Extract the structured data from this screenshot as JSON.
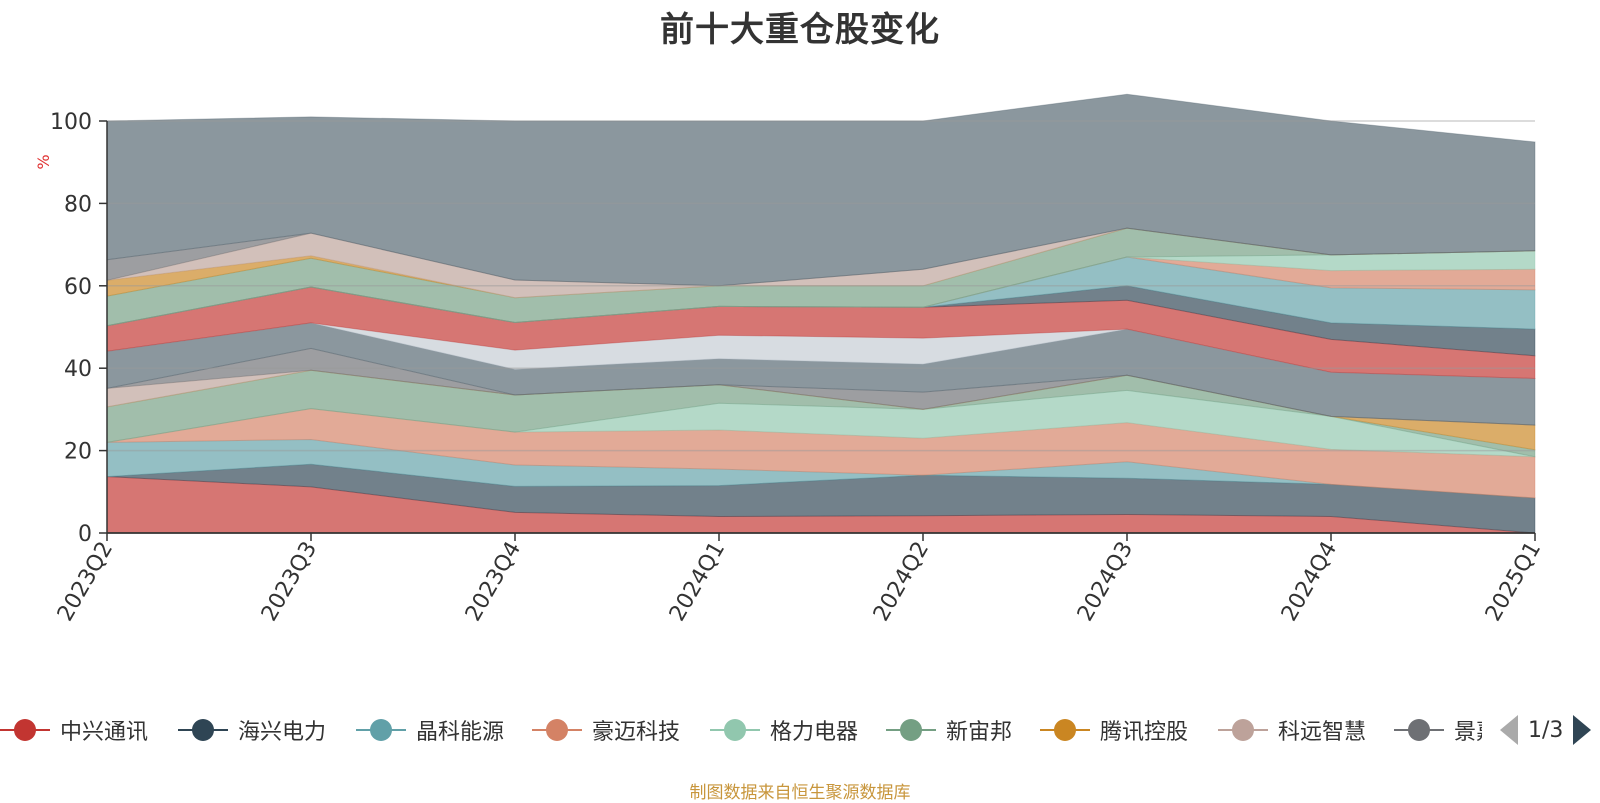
{
  "title": "前十大重仓股变化",
  "source": "制图数据来自恒生聚源数据库",
  "pager": {
    "label": "1/3"
  },
  "chart_data": {
    "type": "area",
    "stacked": true,
    "title": "前十大重仓股变化",
    "ylabel": "%",
    "ylim": [
      0,
      100
    ],
    "yticks": [
      0,
      20,
      40,
      60,
      80,
      100
    ],
    "categories": [
      "2023Q2",
      "2023Q3",
      "2023Q4",
      "2024Q1",
      "2024Q2",
      "2024Q3",
      "2024Q4",
      "2025Q1"
    ],
    "legend_position": "bottom",
    "grid": true,
    "series": [
      {
        "name": "中兴通讯",
        "color": "#c23531",
        "values": [
          13.7,
          11.2,
          5.0,
          4.0,
          4.2,
          4.5,
          4.0,
          0
        ]
      },
      {
        "name": "海兴电力",
        "color": "#2f4554",
        "values": [
          0,
          5.5,
          6.3,
          7.5,
          9.8,
          8.8,
          7.8,
          8.5
        ]
      },
      {
        "name": "晶科能源",
        "color": "#61a0a8",
        "values": [
          8.3,
          6.0,
          5.2,
          4.0,
          0,
          4.0,
          0,
          0
        ]
      },
      {
        "name": "豪迈科技",
        "color": "#d48265",
        "values": [
          0,
          7.5,
          8.0,
          9.5,
          9.0,
          9.5,
          8.5,
          10.0
        ]
      },
      {
        "name": "格力电器",
        "color": "#91c7ae",
        "values": [
          0,
          0,
          0,
          6.5,
          7.0,
          7.8,
          8.0,
          0
        ]
      },
      {
        "name": "新宙邦",
        "color": "#749f83",
        "values": [
          8.6,
          9.3,
          9.0,
          4.5,
          0,
          3.7,
          0,
          1.7
        ]
      },
      {
        "name": "腾讯控股",
        "color": "#ca8622",
        "values": [
          0,
          0,
          0,
          0,
          0,
          0,
          0,
          6.0
        ]
      },
      {
        "name": "科远智慧",
        "color": "#bda29a",
        "values": [
          4.5,
          0,
          0,
          0,
          0,
          0,
          0,
          0
        ]
      },
      {
        "name": "景嘉微",
        "color": "#6e7074",
        "values": [
          0,
          5.3,
          0,
          0,
          4.2,
          0,
          0,
          0
        ]
      },
      {
        "name": "",
        "color": "#546570",
        "values": [
          9.0,
          6.2,
          6.2,
          6.3,
          6.8,
          11.2,
          10.7,
          11.3
        ]
      },
      {
        "name": "",
        "color": "#c4ccd3",
        "values": [
          0,
          0,
          4.7,
          5.7,
          6.3,
          0,
          0,
          0
        ]
      },
      {
        "name": "",
        "color": "#c23531",
        "values": [
          6.2,
          8.7,
          6.7,
          7.0,
          7.5,
          7.0,
          8.0,
          5.5
        ]
      },
      {
        "name": "",
        "color": "#2f4554",
        "values": [
          0,
          0,
          0,
          0,
          0,
          3.5,
          4.0,
          6.5
        ]
      },
      {
        "name": "",
        "color": "#61a0a8",
        "values": [
          0,
          0,
          0,
          0,
          0,
          7.0,
          8.5,
          9.5
        ]
      },
      {
        "name": "",
        "color": "#d48265",
        "values": [
          0,
          0,
          0,
          0,
          0,
          0,
          4.2,
          5.0
        ]
      },
      {
        "name": "",
        "color": "#91c7ae",
        "values": [
          0,
          0,
          0,
          0,
          0,
          0,
          3.8,
          4.5
        ]
      },
      {
        "name": "",
        "color": "#749f83",
        "values": [
          7.2,
          7.0,
          6.0,
          5.0,
          5.2,
          7.0,
          0,
          0
        ]
      },
      {
        "name": "",
        "color": "#ca8622",
        "values": [
          3.8,
          0.6,
          0,
          0,
          0,
          0,
          0,
          0
        ]
      },
      {
        "name": "",
        "color": "#bda29a",
        "values": [
          0,
          5.5,
          4.3,
          0,
          4.0,
          0,
          0,
          0
        ]
      },
      {
        "name": "",
        "color": "#6e7074",
        "values": [
          5.0,
          0,
          0,
          0,
          0,
          0,
          0,
          0
        ]
      },
      {
        "name": "",
        "color": "#546570",
        "values": [
          33.7,
          28.2,
          38.6,
          40.0,
          36.0,
          32.5,
          32.5,
          26.4
        ]
      }
    ]
  },
  "legend": [
    {
      "name": "中兴通讯",
      "color": "#c23531"
    },
    {
      "name": "海兴电力",
      "color": "#2f4554"
    },
    {
      "name": "晶科能源",
      "color": "#61a0a8"
    },
    {
      "name": "豪迈科技",
      "color": "#d48265"
    },
    {
      "name": "格力电器",
      "color": "#91c7ae"
    },
    {
      "name": "新宙邦",
      "color": "#749f83"
    },
    {
      "name": "腾讯控股",
      "color": "#ca8622"
    },
    {
      "name": "科远智慧",
      "color": "#bda29a"
    },
    {
      "name": "景嘉微",
      "color": "#6e7074"
    }
  ]
}
